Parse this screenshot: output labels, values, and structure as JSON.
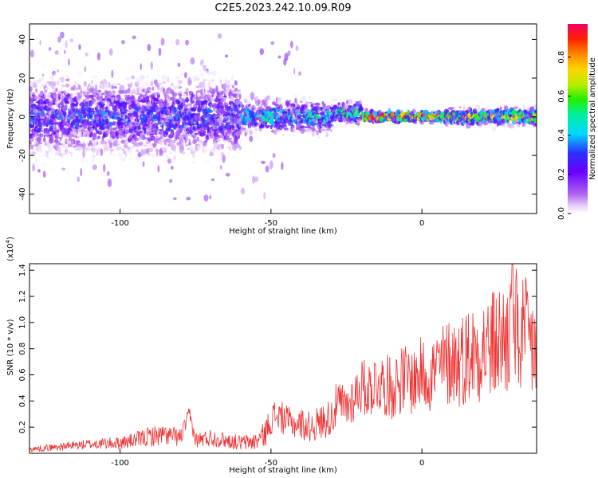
{
  "figure": {
    "title": "C2E5.2023.242.10.09.R09"
  },
  "chart_data": [
    {
      "type": "heatmap",
      "xlabel": "Height of straight line (km)",
      "ylabel": "Frequency (Hz)",
      "xlim": [
        -130,
        38
      ],
      "ylim": [
        -50,
        48
      ],
      "xticks": [
        -100,
        -50,
        0
      ],
      "yticks": [
        -40,
        -20,
        0,
        20,
        40
      ],
      "colorbar": {
        "label": "Normalized spectral amplitude",
        "range": [
          0,
          0.97
        ],
        "ticks": [
          "0.0",
          "0.2",
          "0.4",
          "0.6",
          "0.8"
        ]
      },
      "description_of_pattern": [
        {
          "x_range": [
            -130,
            -60
          ],
          "freq_center": 0,
          "freq_spread": 14,
          "peak_amplitude": 0.35
        },
        {
          "x_range": [
            -60,
            -30
          ],
          "freq_center": 0,
          "freq_spread": 6,
          "peak_amplitude": 0.5
        },
        {
          "x_range": [
            -30,
            -20
          ],
          "freq_center": 2,
          "freq_spread": 4,
          "peak_amplitude": 0.65
        },
        {
          "x_range": [
            -20,
            8
          ],
          "freq_center": 0,
          "freq_spread": 2,
          "peak_amplitude": 0.95
        },
        {
          "x_range": [
            8,
            38
          ],
          "freq_center": 0,
          "freq_spread": 3,
          "peak_amplitude": 0.75
        }
      ]
    },
    {
      "type": "line",
      "xlabel": "Height of straight line (km)",
      "ylabel": "SNR (10 * v/v)",
      "scale_label": "(x10",
      "scale_exponent": "4",
      "scale_suffix": ")",
      "xlim": [
        -130,
        38
      ],
      "ylim": [
        0,
        1.45
      ],
      "xticks": [
        -100,
        -50,
        0
      ],
      "yticks": [
        0.2,
        0.4,
        0.6,
        0.8,
        1.0,
        1.2,
        1.4
      ],
      "series": [
        {
          "color": "#ee3333",
          "x": [
            -130,
            -120,
            -110,
            -100,
            -95,
            -90,
            -85,
            -80,
            -77,
            -75,
            -70,
            -65,
            -60,
            -55,
            -52,
            -50,
            -48,
            -45,
            -42,
            -40,
            -38,
            -35,
            -30,
            -28,
            -25,
            -22,
            -20,
            -18,
            -15,
            -12,
            -10,
            -8,
            -5,
            -3,
            0,
            3,
            5,
            8,
            10,
            12,
            15,
            18,
            20,
            22,
            25,
            28,
            30,
            32,
            35,
            38
          ],
          "y": [
            0.03,
            0.05,
            0.07,
            0.08,
            0.1,
            0.13,
            0.14,
            0.12,
            0.3,
            0.1,
            0.12,
            0.1,
            0.08,
            0.09,
            0.15,
            0.26,
            0.3,
            0.25,
            0.22,
            0.23,
            0.2,
            0.22,
            0.28,
            0.38,
            0.35,
            0.45,
            0.52,
            0.48,
            0.55,
            0.52,
            0.5,
            0.55,
            0.58,
            0.55,
            0.62,
            0.6,
            0.65,
            0.68,
            0.72,
            0.7,
            0.75,
            0.78,
            0.82,
            0.8,
            0.85,
            0.88,
            0.95,
            0.9,
            0.85,
            0.8
          ],
          "noise": [
            0.02,
            0.03,
            0.04,
            0.05,
            0.06,
            0.08,
            0.08,
            0.07,
            0.06,
            0.06,
            0.07,
            0.06,
            0.06,
            0.07,
            0.1,
            0.12,
            0.13,
            0.12,
            0.11,
            0.12,
            0.12,
            0.13,
            0.15,
            0.18,
            0.18,
            0.2,
            0.22,
            0.22,
            0.24,
            0.24,
            0.25,
            0.26,
            0.27,
            0.27,
            0.28,
            0.3,
            0.32,
            0.34,
            0.36,
            0.36,
            0.38,
            0.4,
            0.42,
            0.42,
            0.45,
            0.48,
            0.52,
            0.5,
            0.48,
            0.45
          ],
          "peak": {
            "x": 30,
            "y": 1.45
          }
        }
      ]
    }
  ]
}
